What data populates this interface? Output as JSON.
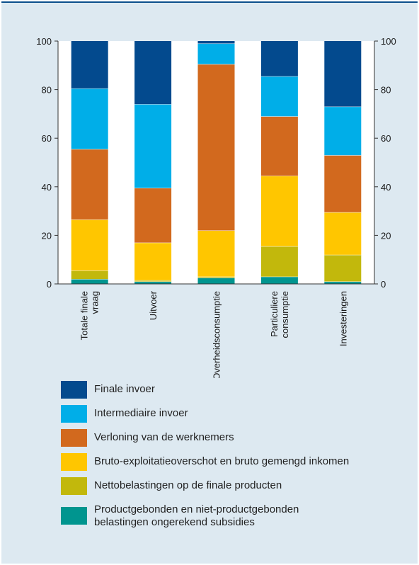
{
  "chart_data": {
    "type": "bar",
    "stacked": true,
    "categories": [
      "Totale finale vraag",
      "Uitvoer",
      "Overheidsconsumptie",
      "Particuliere consumptie",
      "Investeringen"
    ],
    "ylim": [
      0,
      100
    ],
    "yticks": [
      0,
      20,
      40,
      60,
      80,
      100
    ],
    "series": [
      {
        "name": "Productgebonden en niet-productgebonden belastingen ongerekend subsidies",
        "color": "#00958f",
        "values": [
          2,
          1,
          2.5,
          3,
          1
        ]
      },
      {
        "name": "Nettobelastingen op de finale producten",
        "color": "#c2b80c",
        "values": [
          3.5,
          0.5,
          0.5,
          12.5,
          11
        ]
      },
      {
        "name": "Bruto-exploitatieoverschot en bruto gemengd inkomen",
        "color": "#ffc600",
        "values": [
          21,
          15.5,
          19,
          29,
          17.5
        ]
      },
      {
        "name": "Verloning van de werknemers",
        "color": "#d2691e",
        "values": [
          29,
          22.5,
          68.5,
          24.5,
          23.5
        ]
      },
      {
        "name": "Intermediaire invoer",
        "color": "#00aee8",
        "values": [
          25,
          34.5,
          8.5,
          16.5,
          20
        ]
      },
      {
        "name": "Finale invoer",
        "color": "#034a8e",
        "values": [
          19.5,
          26,
          1,
          14.5,
          27
        ]
      }
    ]
  },
  "legend": {
    "items": [
      {
        "label": "Finale invoer",
        "color": "#034a8e"
      },
      {
        "label": "Intermediaire invoer",
        "color": "#00aee8"
      },
      {
        "label": "Verloning van de werknemers",
        "color": "#d2691e"
      },
      {
        "label": "Bruto-exploitatieoverschot en bruto gemengd inkomen",
        "color": "#ffc600"
      },
      {
        "label": "Nettobelastingen op de finale producten",
        "color": "#c2b80c"
      },
      {
        "label": "Productgebonden en niet-productgebonden\nbelastingen ongerekend subsidies",
        "color": "#00958f"
      }
    ]
  }
}
